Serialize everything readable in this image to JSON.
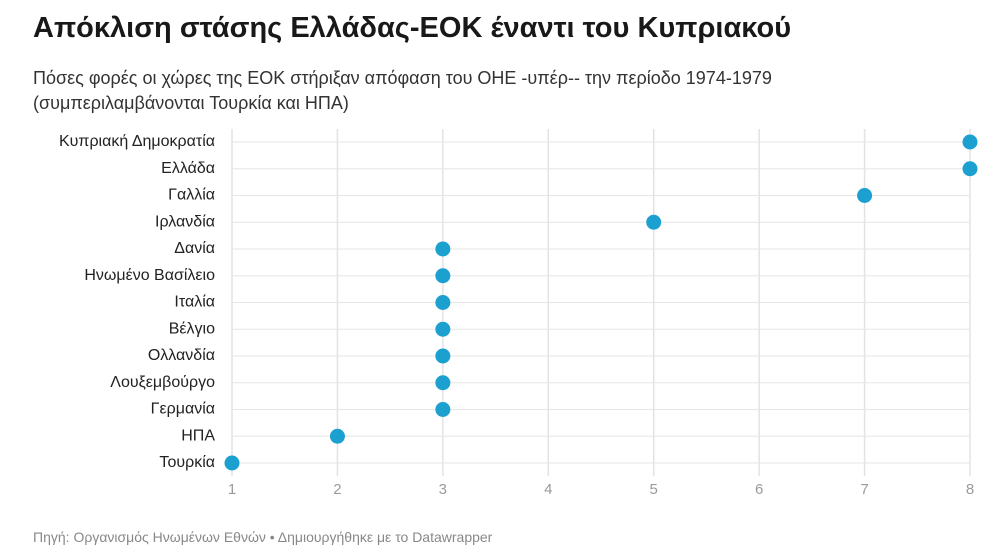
{
  "chart_data": {
    "type": "dot",
    "title": "Απόκλιση στάσης Ελλάδας-ΕΟΚ έναντι του Κυπριακού",
    "subtitle": "Πόσες φορές οι χώρες της ΕΟΚ στήριξαν απόφαση του ΟΗΕ -υπέρ-- την περίοδο 1974-1979 (συμπεριλαμβάνονται Τουρκία και ΗΠΑ)",
    "source": "Πηγή: Οργανισμός Ηνωμένων Εθνών • Δημιουργήθηκε με το Datawrapper",
    "categories": [
      "Κυπριακή Δημοκρατία",
      "Ελλάδα",
      "Γαλλία",
      "Ιρλανδία",
      "Δανία",
      "Ηνωμένο Βασίλειο",
      "Ιταλία",
      "Βέλγιο",
      "Ολλανδία",
      "Λουξεμβούργο",
      "Γερμανία",
      "ΗΠΑ",
      "Τουρκία"
    ],
    "values": [
      8,
      8,
      7,
      5,
      3,
      3,
      3,
      3,
      3,
      3,
      3,
      2,
      1
    ],
    "color": "#1ba0d0",
    "xlim": [
      1,
      8
    ],
    "xticks": [
      1,
      2,
      3,
      4,
      5,
      6,
      7,
      8
    ],
    "grid": true
  }
}
